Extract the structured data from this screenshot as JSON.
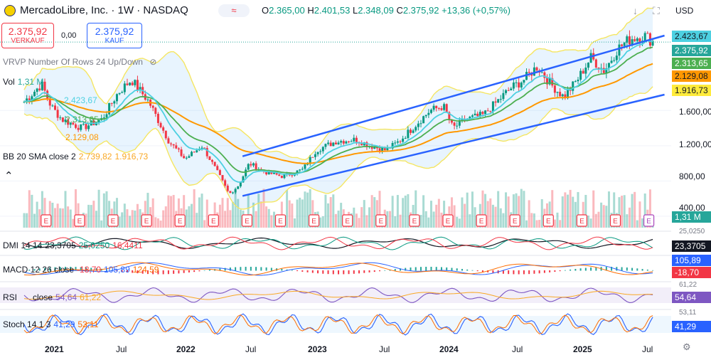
{
  "header": {
    "symbol": "MercadoLibre, Inc. · 1W · NASDAQ",
    "open_label": "O",
    "open": "2.365,00",
    "high_label": "H",
    "high": "2.401,53",
    "low_label": "L",
    "low": "2.348,09",
    "close_label": "C",
    "close": "2.375,92",
    "change": "+13,36 (+0,57%)",
    "pill_icon": "≈",
    "currency": "USD"
  },
  "trade": {
    "sell_price": "2.375,92",
    "sell_label": "VERKAUF",
    "spread": "0,00",
    "buy_price": "2.375,92",
    "buy_label": "KAUF"
  },
  "indicators": {
    "vrvp": "VRVP Number Of Rows 24 Up/Down",
    "vol_name": "Vol",
    "vol_value": "1,31 M",
    "ma_values": [
      "2.423,67",
      "2.313,65",
      "2.129,08"
    ],
    "bb_name": "BB 20 SMA close 2",
    "bb_upper": "2.739,82",
    "bb_lower": "1.916,73",
    "dmi_name": "DMI 14 14",
    "dmi_adx": "23,3705",
    "dmi_plus": "25,0250",
    "dmi_minus": "16,4411",
    "macd_name": "MACD 12 26 close",
    "macd_hist": "-18,70",
    "macd_line": "105,89",
    "macd_signal": "124,59",
    "rsi_name": "RSI",
    "rsi_src": "close",
    "rsi_value": "54,64",
    "rsi_ma": "61,22",
    "stoch_name": "Stoch 14 1 3",
    "stoch_k": "41,29",
    "stoch_d": "53,11"
  },
  "price_axis": {
    "ticks": [
      "1.600,00",
      "1.200,00",
      "800,00",
      "400,00"
    ],
    "tags": [
      {
        "value": "2.423,67",
        "color": "#4dd0e1"
      },
      {
        "value": "2.375,92",
        "color": "#26a69a"
      },
      {
        "value": "2.313,65",
        "color": "#4caf50"
      },
      {
        "value": "2.129,08",
        "color": "#ff9800"
      },
      {
        "value": "1.916,73",
        "color": "#ffeb3b"
      }
    ],
    "volume_tag": "1,31 M",
    "dmi_tag": "23,3705",
    "dmi_top": "25,0250",
    "macd_tag1": "105,89",
    "macd_tag2": "-18,70",
    "rsi_tag": "54,64",
    "rsi_top": "61,22",
    "stoch_tag": "41,29",
    "stoch_top": "53,11"
  },
  "time_axis": {
    "labels": [
      "2021",
      "Jul",
      "2022",
      "Jul",
      "2023",
      "Jul",
      "2024",
      "Jul",
      "2025",
      "Jul"
    ]
  },
  "chart_data": {
    "type": "candlestick",
    "symbol": "MercadoLibre, Inc.",
    "timeframe": "1W",
    "exchange": "NASDAQ",
    "x_range": [
      "2020-11",
      "2025-08"
    ],
    "y_range": [
      400,
      2450
    ],
    "series": [
      {
        "name": "price",
        "points": [
          [
            2020.92,
            1700
          ],
          [
            2021.05,
            1900
          ],
          [
            2021.12,
            1650
          ],
          [
            2021.2,
            1500
          ],
          [
            2021.35,
            1400
          ],
          [
            2021.5,
            1500
          ],
          [
            2021.62,
            1800
          ],
          [
            2021.72,
            1950
          ],
          [
            2021.85,
            1700
          ],
          [
            2022.0,
            1250
          ],
          [
            2022.12,
            1050
          ],
          [
            2022.25,
            1200
          ],
          [
            2022.38,
            850
          ],
          [
            2022.45,
            650
          ],
          [
            2022.52,
            750
          ],
          [
            2022.6,
            1000
          ],
          [
            2022.72,
            900
          ],
          [
            2022.85,
            850
          ],
          [
            2023.0,
            930
          ],
          [
            2023.1,
            1150
          ],
          [
            2023.25,
            1250
          ],
          [
            2023.4,
            1270
          ],
          [
            2023.5,
            1200
          ],
          [
            2023.62,
            1150
          ],
          [
            2023.72,
            1250
          ],
          [
            2023.85,
            1450
          ],
          [
            2023.95,
            1600
          ],
          [
            2024.05,
            1650
          ],
          [
            2024.12,
            1400
          ],
          [
            2024.22,
            1500
          ],
          [
            2024.35,
            1550
          ],
          [
            2024.45,
            1700
          ],
          [
            2024.55,
            1850
          ],
          [
            2024.65,
            1950
          ],
          [
            2024.75,
            2100
          ],
          [
            2024.85,
            1900
          ],
          [
            2024.95,
            1750
          ],
          [
            2025.05,
            1950
          ],
          [
            2025.15,
            2200
          ],
          [
            2025.25,
            2050
          ],
          [
            2025.35,
            2300
          ],
          [
            2025.45,
            2420
          ],
          [
            2025.55,
            2450
          ],
          [
            2025.62,
            2376
          ]
        ]
      },
      {
        "name": "EMA short",
        "value": 2423.67
      },
      {
        "name": "EMA mid",
        "value": 2313.65
      },
      {
        "name": "EMA long",
        "value": 2129.08
      },
      {
        "name": "BB upper",
        "value": 2739.82
      },
      {
        "name": "BB lower",
        "value": 1916.73
      }
    ],
    "trend_channel": {
      "upper": [
        [
          2022.55,
          1080
        ],
        [
          2025.7,
          2450
        ]
      ],
      "lower": [
        [
          2022.55,
          630
        ],
        [
          2025.7,
          1780
        ]
      ]
    },
    "earnings_markers": [
      "2021-02",
      "2021-05",
      "2021-08",
      "2021-11",
      "2022-02",
      "2022-05",
      "2022-08",
      "2022-11",
      "2023-02",
      "2023-05",
      "2023-08",
      "2023-11",
      "2024-02",
      "2024-05",
      "2024-08",
      "2024-11",
      "2025-02",
      "2025-05",
      "2025-08"
    ],
    "earnings_label": "E"
  }
}
